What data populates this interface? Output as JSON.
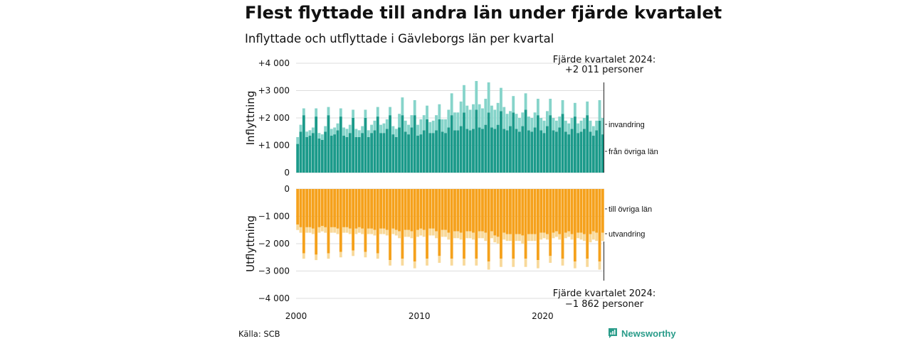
{
  "title": "Flest flyttade till andra län under fjärde kvartalet",
  "subtitle": "Inflyttade och utflyttade i Gävleborgs län per kvartal",
  "source": "Källa: SCB",
  "brand": "Newsworthy",
  "colors": {
    "in_domestic": "#1b9a8a",
    "in_immigration": "#86d4ca",
    "out_domestic": "#f5a11c",
    "out_emigration": "#f8d99a",
    "grid": "#dddddd"
  },
  "chart_data": {
    "type": "bar",
    "x_start": "2000-Q1",
    "x_end": "2024-Q4",
    "x_ticks": [
      "2000",
      "2010",
      "2020"
    ],
    "panels": [
      {
        "ylabel": "Inflyttning",
        "ylim": [
          0,
          4000
        ],
        "y_ticks": [
          {
            "v": 4000,
            "label": "+4 000"
          },
          {
            "v": 3000,
            "label": "+3 000"
          },
          {
            "v": 2000,
            "label": "+2 000"
          },
          {
            "v": 1000,
            "label": "+1 000"
          },
          {
            "v": 0,
            "label": "0"
          }
        ],
        "series": [
          {
            "name": "från övriga län",
            "values": [
              1050,
              1500,
              2100,
              1300,
              1350,
              1450,
              2050,
              1250,
              1200,
              1500,
              2100,
              1350,
              1400,
              1550,
              2050,
              1350,
              1300,
              1450,
              2000,
              1300,
              1300,
              1450,
              2000,
              1300,
              1450,
              1550,
              2050,
              1450,
              1450,
              1600,
              2100,
              1400,
              1300,
              1650,
              2100,
              1500,
              1400,
              1650,
              2100,
              1350,
              1400,
              1550,
              1950,
              1450,
              1450,
              1550,
              1950,
              1500,
              1450,
              1650,
              2100,
              1550,
              1550,
              1700,
              2200,
              1600,
              1550,
              1600,
              2300,
              1650,
              1600,
              1750,
              2200,
              1650,
              1600,
              1750,
              2250,
              1600,
              1550,
              1700,
              2200,
              1600,
              1500,
              1700,
              2300,
              1550,
              1500,
              1650,
              2100,
              1550,
              1450,
              1700,
              2100,
              1550,
              1500,
              1650,
              2150,
              1500,
              1400,
              1600,
              2050,
              1450,
              1500,
              1600,
              2100,
              1500,
              1350,
              1550,
              1900,
              1400
            ]
          },
          {
            "name": "invandring",
            "values": [
              250,
              250,
              250,
              200,
              200,
              200,
              300,
              200,
              200,
              200,
              300,
              250,
              250,
              250,
              300,
              300,
              300,
              300,
              300,
              300,
              250,
              250,
              300,
              250,
              300,
              350,
              350,
              300,
              350,
              350,
              300,
              300,
              300,
              500,
              650,
              400,
              350,
              450,
              550,
              400,
              550,
              550,
              500,
              400,
              450,
              550,
              550,
              450,
              500,
              650,
              800,
              650,
              650,
              900,
              1000,
              850,
              750,
              900,
              1050,
              850,
              750,
              950,
              1100,
              800,
              700,
              800,
              850,
              800,
              600,
              550,
              600,
              550,
              500,
              500,
              600,
              500,
              500,
              550,
              600,
              450,
              450,
              550,
              600,
              450,
              400,
              400,
              500,
              400,
              400,
              400,
              500,
              350,
              400,
              400,
              500,
              400,
              350,
              350,
              750,
              600
            ]
          }
        ]
      },
      {
        "ylabel": "Utflyttning",
        "ylim": [
          -4000,
          0
        ],
        "y_ticks": [
          {
            "v": 0,
            "label": "0"
          },
          {
            "v": -1000,
            "label": "−1 000"
          },
          {
            "v": -2000,
            "label": "−2 000"
          },
          {
            "v": -3000,
            "label": "−3 000"
          },
          {
            "v": -4000,
            "label": "−4 000"
          }
        ],
        "series": [
          {
            "name": "till övriga län",
            "values": [
              -1300,
              -1400,
              -2350,
              -1400,
              -1400,
              -1450,
              -2400,
              -1400,
              -1350,
              -1400,
              -2350,
              -1400,
              -1400,
              -1450,
              -2300,
              -1400,
              -1400,
              -1450,
              -2250,
              -1450,
              -1400,
              -1450,
              -2300,
              -1450,
              -1450,
              -1500,
              -2350,
              -1450,
              -1450,
              -1500,
              -2600,
              -1450,
              -1500,
              -1550,
              -2550,
              -1500,
              -1500,
              -1550,
              -2650,
              -1500,
              -1450,
              -1500,
              -2550,
              -1450,
              -1450,
              -1550,
              -2450,
              -1500,
              -1500,
              -1600,
              -2550,
              -1550,
              -1550,
              -1600,
              -2550,
              -1550,
              -1550,
              -1600,
              -2550,
              -1550,
              -1550,
              -1600,
              -2650,
              -1550,
              -1700,
              -1750,
              -2550,
              -1600,
              -1650,
              -1650,
              -2550,
              -1650,
              -1650,
              -1700,
              -2550,
              -1650,
              -1650,
              -1650,
              -2600,
              -1600,
              -1600,
              -1650,
              -2450,
              -1600,
              -1550,
              -1650,
              -2550,
              -1600,
              -1550,
              -1650,
              -2650,
              -1600,
              -1600,
              -1650,
              -2550,
              -1650,
              -1550,
              -1600,
              -2650,
              -1600
            ]
          },
          {
            "name": "utvandring",
            "values": [
              -200,
              -200,
              -200,
              -200,
              -200,
              -200,
              -200,
              -200,
              -200,
              -200,
              -200,
              -200,
              -200,
              -200,
              -200,
              -200,
              -200,
              -200,
              -200,
              -200,
              -200,
              -200,
              -200,
              -200,
              -200,
              -200,
              -200,
              -200,
              -200,
              -200,
              -200,
              -200,
              -200,
              -250,
              -250,
              -250,
              -250,
              -250,
              -250,
              -250,
              -250,
              -250,
              -250,
              -250,
              -250,
              -250,
              -250,
              -250,
              -250,
              -250,
              -250,
              -250,
              -250,
              -250,
              -250,
              -250,
              -250,
              -250,
              -250,
              -250,
              -250,
              -300,
              -300,
              -250,
              -250,
              -250,
              -300,
              -250,
              -250,
              -250,
              -300,
              -250,
              -250,
              -300,
              -300,
              -250,
              -250,
              -250,
              -300,
              -250,
              -200,
              -200,
              -250,
              -200,
              -200,
              -200,
              -250,
              -200,
              -200,
              -200,
              -250,
              -200,
              -250,
              -250,
              -300,
              -300,
              -300,
              -300,
              -300,
              -300
            ]
          }
        ]
      }
    ],
    "annotations": [
      {
        "panel": 0,
        "lines": [
          "Fjärde kvartalet 2024:",
          "+2 011 personer"
        ]
      },
      {
        "panel": 1,
        "lines": [
          "Fjärde kvartalet 2024:",
          "−1 862 personer"
        ]
      }
    ]
  }
}
